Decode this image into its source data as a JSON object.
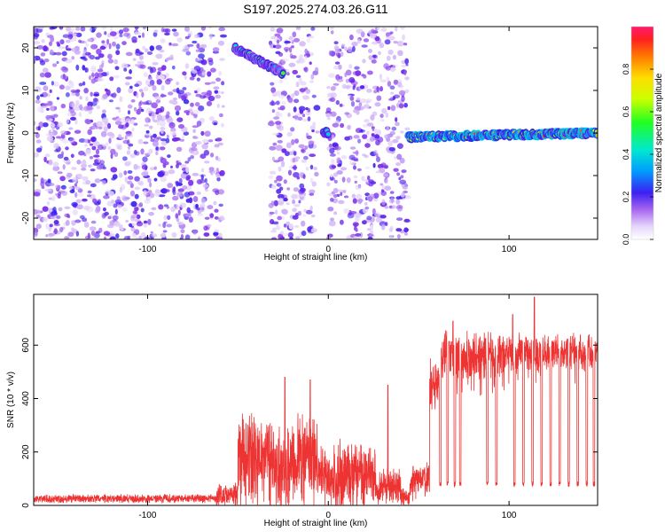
{
  "figure": {
    "title": "S197.2025.274.03.26.G11"
  },
  "chart_data": [
    {
      "type": "heatmap",
      "xlabel": "Height of straight line (km)",
      "ylabel": "Frequency (Hz)",
      "xlim": [
        -163,
        149
      ],
      "ylim": [
        -25,
        25
      ],
      "x_ticks": [
        -100,
        0,
        100
      ],
      "y_ticks": [
        -20,
        -10,
        0,
        10,
        20
      ],
      "colorbar": {
        "label": "Normalized spectral amplitude",
        "range": [
          0,
          1
        ],
        "ticks": [
          0.0,
          0.2,
          0.4,
          0.6,
          0.8
        ],
        "tick_labels": [
          "0.0",
          "0.2",
          "0.4",
          "0.6",
          "0.8"
        ],
        "colormap": [
          "#ffffff",
          "#c9a8f5",
          "#7a28e8",
          "#2a1cf0",
          "#00a8ff",
          "#00e8c8",
          "#22ff22",
          "#c8ff00",
          "#ffee00",
          "#ff9a00",
          "#ff2a1a",
          "#ff1a6e"
        ]
      },
      "data_gaps_x": [
        [
          -58,
          -32
        ],
        [
          -6,
          0
        ],
        [
          40,
          44
        ]
      ],
      "features": [
        {
          "kind": "noise",
          "x_range": [
            -163,
            -58
          ],
          "y_range": [
            -25,
            25
          ],
          "amplitude": 0.2
        },
        {
          "kind": "noise",
          "x_range": [
            -32,
            -6
          ],
          "y_range": [
            -25,
            25
          ],
          "amplitude": 0.18
        },
        {
          "kind": "noise",
          "x_range": [
            0,
            44
          ],
          "y_range": [
            -25,
            25
          ],
          "amplitude": 0.18
        },
        {
          "kind": "line",
          "x_range": [
            -52,
            -25
          ],
          "y_start": 20,
          "y_end": 14,
          "amplitude": 0.5
        },
        {
          "kind": "line",
          "x_range": [
            -3,
            0
          ],
          "y_start": 0,
          "y_end": 0,
          "amplitude": 0.55
        },
        {
          "kind": "line",
          "x_range": [
            44,
            149
          ],
          "y_start": -1,
          "y_end": 0,
          "amplitude": 0.85
        }
      ]
    },
    {
      "type": "line",
      "xlabel": "Height of straight line (km)",
      "ylabel": "SNR (10 * v/v)",
      "xlim": [
        -163,
        149
      ],
      "ylim": [
        0,
        790
      ],
      "x_ticks": [
        -100,
        0,
        100
      ],
      "y_ticks": [
        0,
        200,
        400,
        600
      ],
      "color": "#ee3333",
      "segments": [
        {
          "x_range": [
            -163,
            -62
          ],
          "base": 25,
          "noise": 14
        },
        {
          "x_range": [
            -62,
            -50
          ],
          "base": 40,
          "noise": 40
        },
        {
          "x_range": [
            -50,
            -32
          ],
          "base": 190,
          "noise": 140
        },
        {
          "x_range": [
            -32,
            -20
          ],
          "base": 150,
          "noise": 120
        },
        {
          "x_range": [
            -20,
            -6
          ],
          "base": 180,
          "noise": 150
        },
        {
          "x_range": [
            -6,
            2
          ],
          "base": 110,
          "noise": 110
        },
        {
          "x_range": [
            2,
            26
          ],
          "base": 120,
          "noise": 110
        },
        {
          "x_range": [
            26,
            40
          ],
          "base": 70,
          "noise": 60
        },
        {
          "x_range": [
            40,
            45
          ],
          "base": 30,
          "noise": 30
        },
        {
          "x_range": [
            45,
            56
          ],
          "base": 90,
          "noise": 60
        },
        {
          "x_range": [
            56,
            62
          ],
          "base": 460,
          "noise": 80
        },
        {
          "x_range": [
            62,
            98
          ],
          "base": 560,
          "noise": 80
        },
        {
          "x_range": [
            98,
            149
          ],
          "base": 575,
          "noise": 60
        }
      ],
      "dropouts": [
        {
          "x": 62,
          "depth": 80
        },
        {
          "x": 66,
          "depth": 80
        },
        {
          "x": 70,
          "depth": 80
        },
        {
          "x": 73,
          "depth": 80
        },
        {
          "x": 88,
          "depth": 80
        },
        {
          "x": 93,
          "depth": 80
        },
        {
          "x": 103,
          "depth": 80
        },
        {
          "x": 108,
          "depth": 80
        },
        {
          "x": 113,
          "depth": 80
        },
        {
          "x": 118,
          "depth": 80
        },
        {
          "x": 123,
          "depth": 80
        },
        {
          "x": 128,
          "depth": 80
        },
        {
          "x": 133,
          "depth": 80
        },
        {
          "x": 138,
          "depth": 80
        },
        {
          "x": 143,
          "depth": 80
        },
        {
          "x": 147,
          "depth": 80
        }
      ],
      "peaks": [
        {
          "x": 114,
          "y": 780
        },
        {
          "x": 102,
          "y": 715
        },
        {
          "x": 69,
          "y": 690
        },
        {
          "x": -24,
          "y": 480
        },
        {
          "x": -10,
          "y": 470
        },
        {
          "x": 33,
          "y": 450
        }
      ]
    }
  ]
}
